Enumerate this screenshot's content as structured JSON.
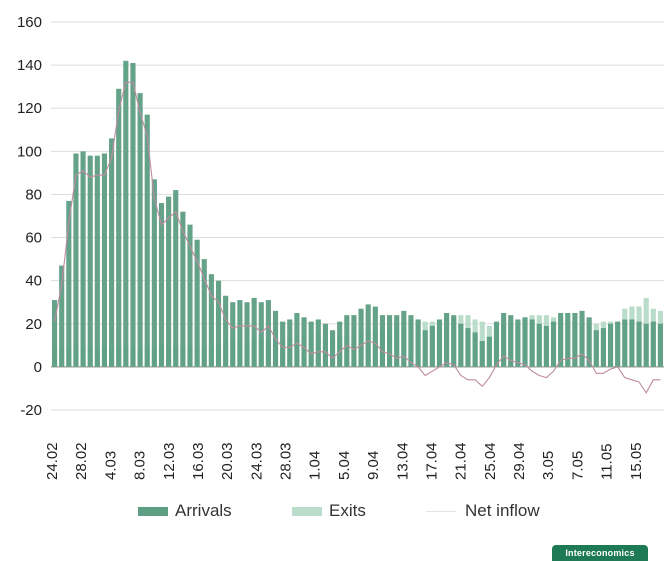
{
  "chart_data": {
    "type": "bar",
    "y_ticks": [
      160,
      140,
      120,
      100,
      80,
      60,
      40,
      20,
      0,
      -20
    ],
    "ylim": [
      -20,
      160
    ],
    "grid": true,
    "x_tick_labels": [
      "24.02",
      "28.02",
      "4.03",
      "8.03",
      "12.03",
      "16.03",
      "20.03",
      "24.03",
      "28.03",
      "1.04",
      "5.04",
      "9.04",
      "13.04",
      "17.04",
      "21.04",
      "25.04",
      "29.04",
      "3.05",
      "7.05",
      "11.05",
      "15.05"
    ],
    "series": [
      {
        "name": "Arrivals",
        "color": "#5e9e84",
        "values": [
          31,
          47,
          77,
          99,
          100,
          98,
          98,
          99,
          106,
          129,
          142,
          141,
          127,
          117,
          87,
          76,
          79,
          82,
          72,
          66,
          59,
          50,
          43,
          40,
          33,
          30,
          31,
          30,
          32,
          30,
          31,
          26,
          21,
          22,
          25,
          23,
          21,
          22,
          20,
          17,
          21,
          24,
          24,
          27,
          29,
          28,
          24,
          24,
          24,
          26,
          24,
          22,
          17,
          19,
          22,
          25,
          24,
          20,
          18,
          16,
          12,
          14,
          21,
          25,
          24,
          22,
          23,
          22,
          20,
          19,
          21,
          25,
          25,
          25,
          26,
          23,
          17,
          18,
          20,
          21,
          22,
          22,
          21,
          20,
          21,
          20
        ]
      },
      {
        "name": "Exits",
        "color": "#b9dccb",
        "values": [
          10,
          9,
          10,
          10,
          9,
          10,
          9,
          10,
          9,
          10,
          10,
          9,
          9,
          10,
          9,
          10,
          10,
          10,
          9,
          10,
          10,
          9,
          10,
          10,
          11,
          12,
          12,
          11,
          13,
          14,
          12,
          13,
          12,
          13,
          14,
          14,
          15,
          15,
          13,
          13,
          14,
          14,
          16,
          17,
          17,
          17,
          17,
          18,
          20,
          21,
          22,
          22,
          21,
          21,
          22,
          23,
          23,
          24,
          24,
          22,
          21,
          19,
          20,
          20,
          21,
          20,
          22,
          24,
          24,
          24,
          23,
          22,
          21,
          21,
          20,
          20,
          20,
          21,
          21,
          21,
          27,
          28,
          28,
          32,
          27,
          26
        ]
      },
      {
        "name": "Net inflow",
        "color": "#c08aa2",
        "values": [
          21,
          38,
          67,
          89,
          91,
          88,
          89,
          89,
          97,
          119,
          132,
          132,
          118,
          107,
          78,
          66,
          69,
          72,
          63,
          56,
          49,
          41,
          33,
          30,
          22,
          18,
          19,
          19,
          19,
          16,
          19,
          13,
          9,
          9,
          11,
          9,
          6,
          7,
          7,
          4,
          7,
          10,
          8,
          10,
          12,
          11,
          7,
          6,
          4,
          5,
          2,
          0,
          -4,
          -2,
          0,
          2,
          1,
          -4,
          -6,
          -6,
          -9,
          -5,
          1,
          5,
          3,
          2,
          1,
          -2,
          -4,
          -5,
          -2,
          3,
          4,
          4,
          6,
          3,
          -3,
          -3,
          -1,
          0,
          -5,
          -6,
          -7,
          -12,
          -6,
          -6
        ]
      }
    ]
  },
  "legend": {
    "arrivals": "Arrivals",
    "exits": "Exits",
    "net_inflow": "Net inflow"
  },
  "branding": {
    "label": "Intereconomics"
  }
}
